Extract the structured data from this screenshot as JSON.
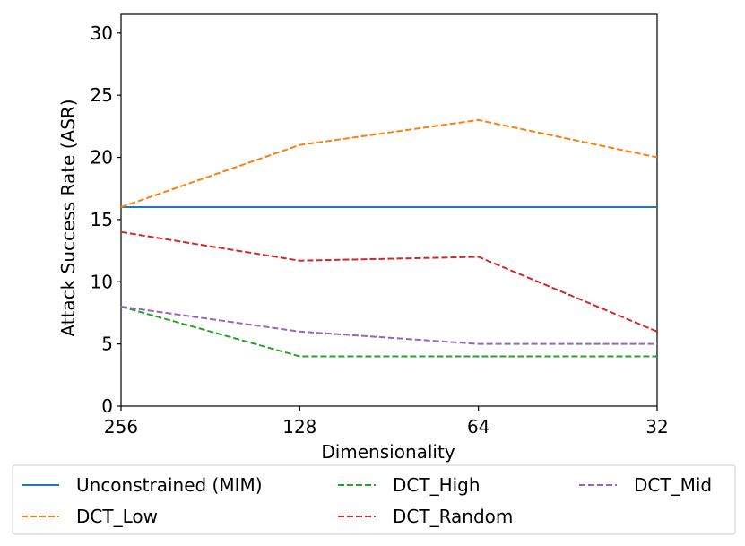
{
  "chart_data": {
    "type": "line",
    "title": "",
    "xlabel": "Dimensionality",
    "ylabel": "Attack Success Rate (ASR)",
    "categories": [
      "256",
      "128",
      "64",
      "32"
    ],
    "ylim": [
      0,
      31.5
    ],
    "yticks": [
      0,
      5,
      10,
      15,
      20,
      25,
      30
    ],
    "grid": false,
    "legend_position": "bottom",
    "series": [
      {
        "name": "Unconstrained (MIM)",
        "values": [
          16,
          16,
          16,
          16
        ],
        "color": "#1f77b4",
        "dash": "solid"
      },
      {
        "name": "DCT_Low",
        "values": [
          16,
          21,
          23,
          20
        ],
        "color": "#ff7f0e",
        "dash": "dashed"
      },
      {
        "name": "DCT_High",
        "values": [
          8,
          4,
          4,
          4
        ],
        "color": "#2ca02c",
        "dash": "dashed"
      },
      {
        "name": "DCT_Random",
        "values": [
          14,
          11.7,
          12,
          6
        ],
        "color": "#d62728",
        "dash": "dashed"
      },
      {
        "name": "DCT_Mid",
        "values": [
          8,
          6,
          5,
          5
        ],
        "color": "#9467bd",
        "dash": "dashed"
      }
    ]
  }
}
